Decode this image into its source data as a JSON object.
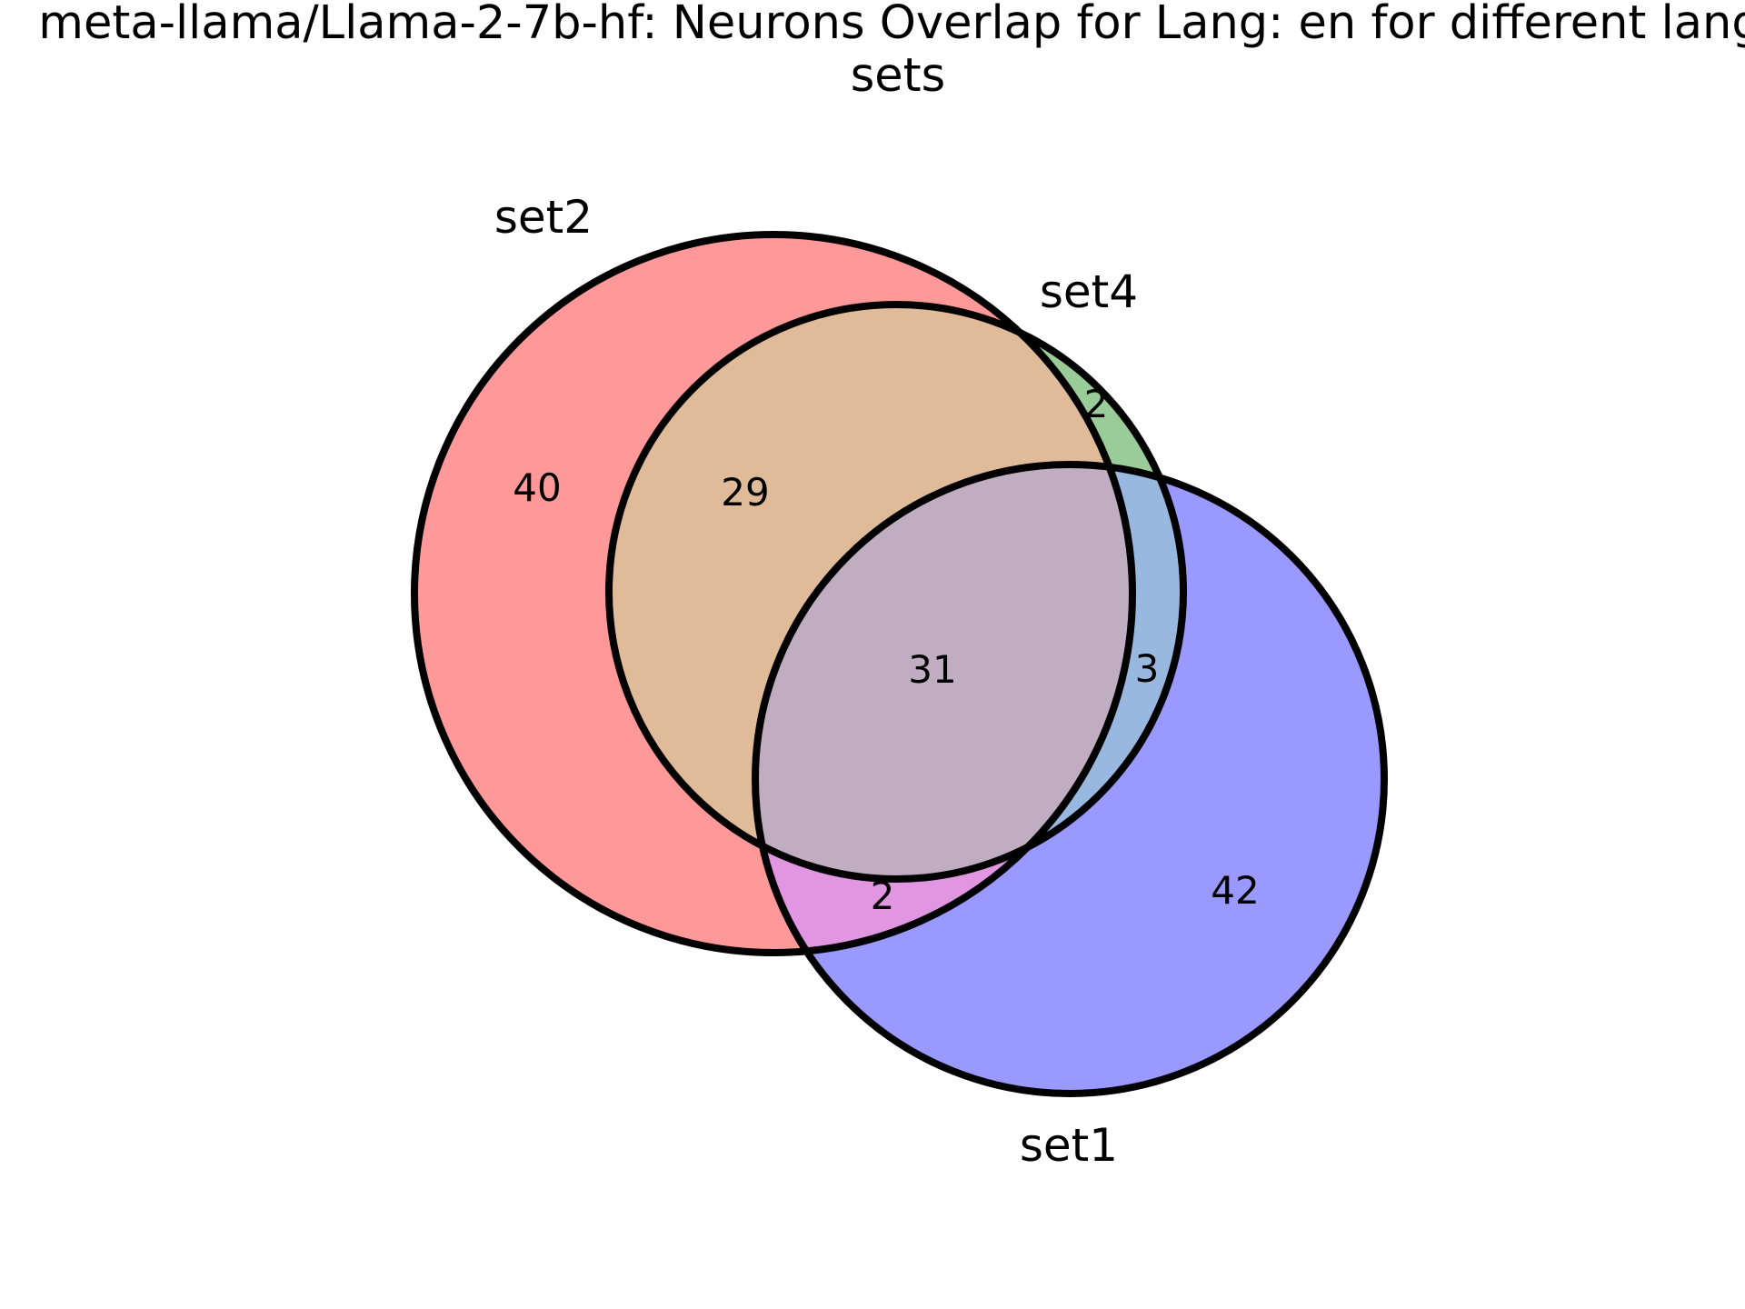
{
  "title_line1": "meta-llama/Llama-2-7b-hf: Neurons Overlap for Lang: en for different lang",
  "title_line2": "sets",
  "sets": [
    {
      "name": "set1",
      "color": "#0000ff"
    },
    {
      "name": "set2",
      "color": "#ff0000"
    },
    {
      "name": "set4",
      "color": "#008000"
    }
  ],
  "regions": {
    "set2_only": "40",
    "set2_set4": "29",
    "set4_only": "2",
    "all_three": "31",
    "set1_set4": "3",
    "set1_set2": "2",
    "set1_only": "42"
  },
  "colors": {
    "set2_only": "#ff9999",
    "set2_set4": "#e0bb99",
    "set4_only": "#99cc99",
    "all_three": "#c0adc2",
    "set1_set4": "#99b8e0",
    "set1_set2": "#e096e0",
    "set1_only": "#9999ff",
    "outline": "#000000"
  }
}
